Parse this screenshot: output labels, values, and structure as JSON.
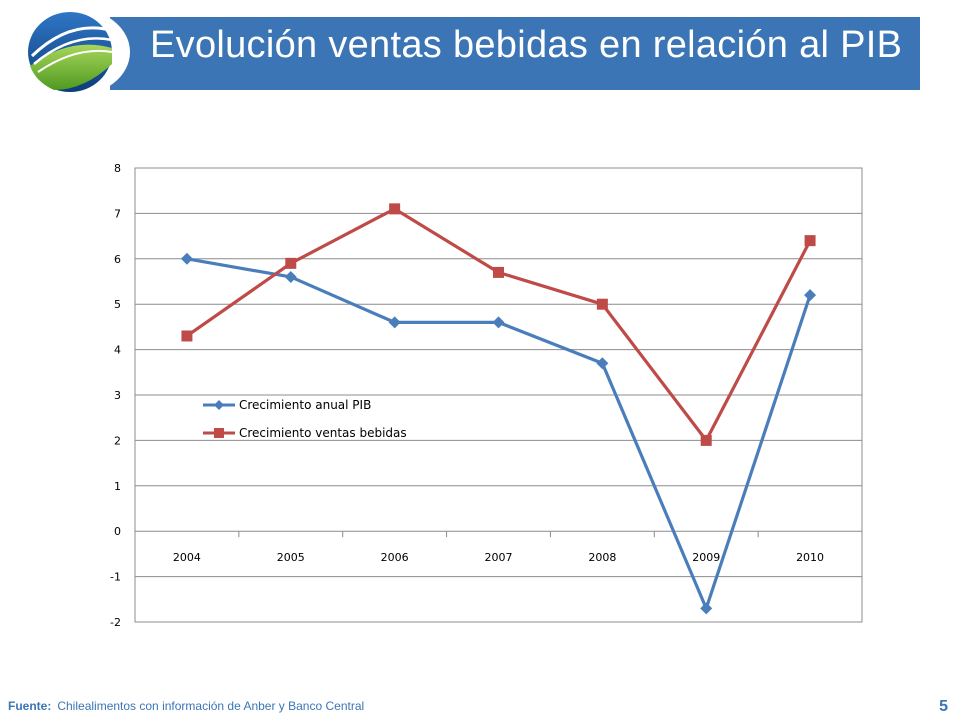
{
  "slide": {
    "title": "Evolución ventas bebidas en relación al PIB",
    "source_label": "Fuente:",
    "source_text": "Chilealimentos con información de Anber y Banco Central",
    "page_number": "5"
  },
  "colors": {
    "title_bar": "#3b75b5",
    "series_pib": "#4a7ebb",
    "series_bebidas": "#be4b48",
    "gridline": "#8c8c8c"
  },
  "chart_data": {
    "type": "line",
    "title": "",
    "xlabel": "",
    "ylabel": "",
    "categories": [
      "2004",
      "2005",
      "2006",
      "2007",
      "2008",
      "2009",
      "2010"
    ],
    "ylim": [
      -2,
      8
    ],
    "yticks": [
      8,
      7,
      6,
      5,
      4,
      3,
      2,
      1,
      0,
      -1,
      -2
    ],
    "grid": true,
    "legend_position": "inside-left-middle",
    "series": [
      {
        "name": "Crecimiento anual PIB",
        "marker": "diamond",
        "color": "#4a7ebb",
        "values": [
          6.0,
          5.6,
          4.6,
          4.6,
          3.7,
          -1.7,
          5.2
        ]
      },
      {
        "name": "Crecimiento ventas bebidas",
        "marker": "square",
        "color": "#be4b48",
        "values": [
          4.3,
          5.9,
          7.1,
          5.7,
          5.0,
          2.0,
          6.4
        ]
      }
    ]
  }
}
